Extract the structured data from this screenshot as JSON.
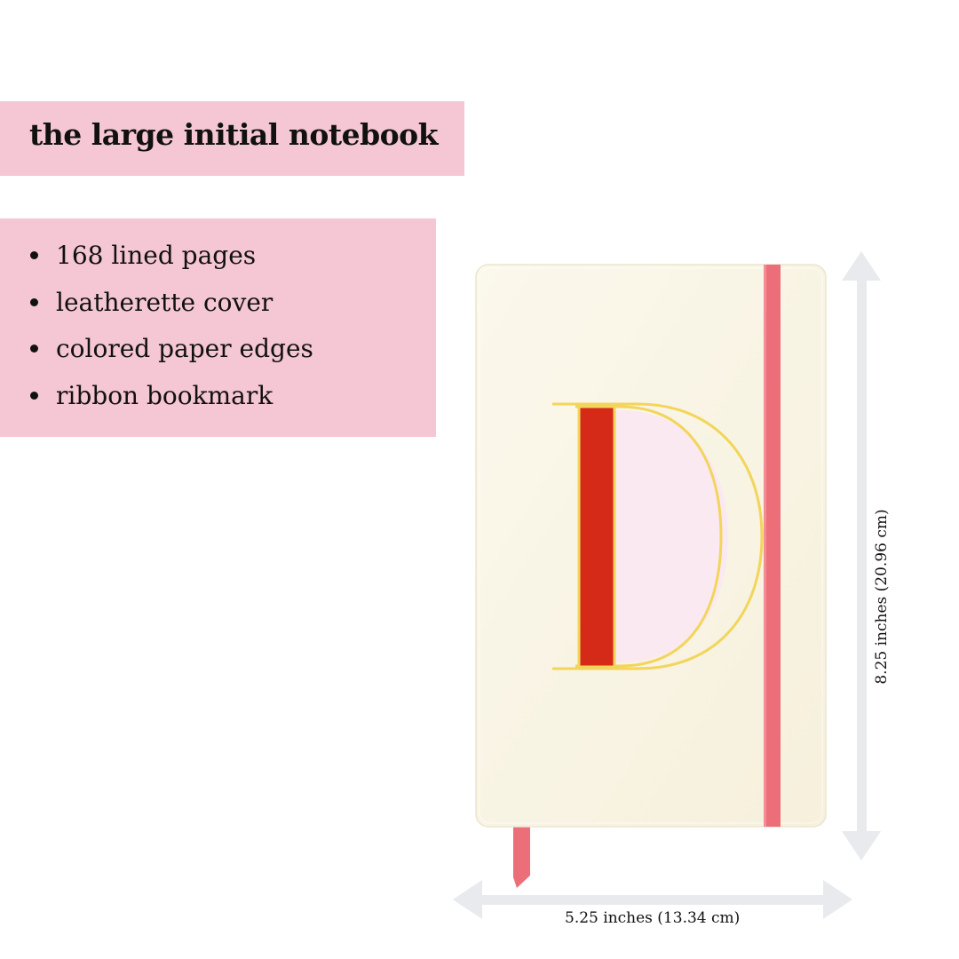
{
  "product": {
    "title": "the large initial notebook",
    "features": [
      {
        "label": "168 lined pages"
      },
      {
        "label": "leatherette cover"
      },
      {
        "label": "colored paper edges"
      },
      {
        "label": "ribbon bookmark"
      }
    ]
  },
  "illustration": {
    "initial_letter": "D",
    "cover_color": "#faf5e5",
    "band_color": "#ec6e78",
    "ribbon_color": "#ec6e78",
    "letter_stem_color": "#d62a19",
    "letter_fill_color": "#fbe9f1",
    "foil_color": "#f2d55a",
    "panel_color": "#f5c6d4"
  },
  "dimensions": {
    "width_label": "5.25 inches (13.34 cm)",
    "height_label": "8.25 inches (20.96 cm)"
  }
}
